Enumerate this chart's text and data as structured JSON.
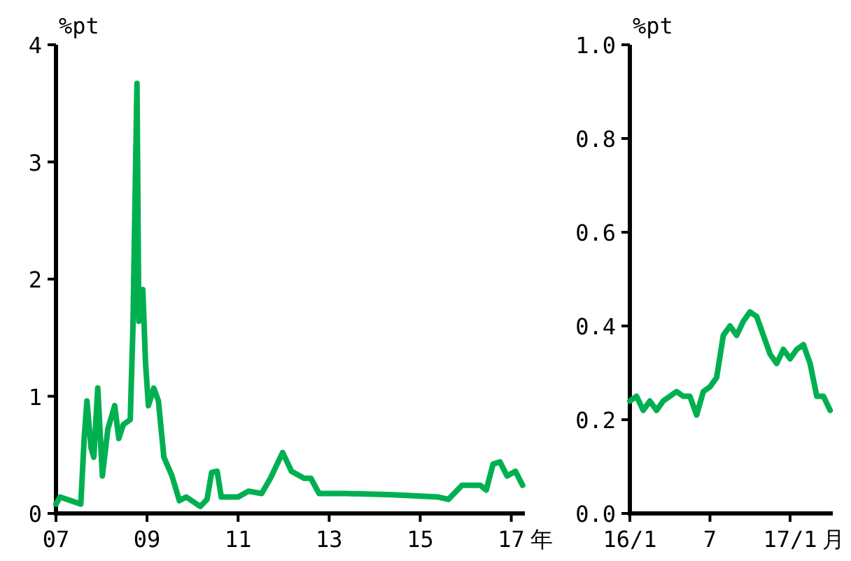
{
  "chart_data": [
    {
      "type": "line",
      "ylabel": "%pt",
      "xlabel": "年",
      "color": "#00b050",
      "x": [
        "2007-01-01",
        "2007-02-03",
        "2007-07-19",
        "2007-08-15",
        "2007-09-06",
        "2007-10-09",
        "2007-10-31",
        "2007-12-02",
        "2008-01-08",
        "2008-02-21",
        "2008-03-25",
        "2008-04-16",
        "2008-05-19",
        "2008-06-25",
        "2008-08-19",
        "2008-09-10",
        "2008-10-12",
        "2008-10-27",
        "2008-11-28",
        "2008-12-20",
        "2009-01-12",
        "2009-02-24",
        "2009-04-02",
        "2009-05-16",
        "2009-07-20",
        "2009-09-17",
        "2009-11-11",
        "2010-03-04",
        "2010-04-27",
        "2010-06-03",
        "2010-07-17",
        "2010-08-19",
        "2011-01-01",
        "2011-03-24",
        "2011-07-09",
        "2011-09-17",
        "2011-12-24",
        "2012-03-04",
        "2012-06-14",
        "2012-08-07",
        "2012-10-12",
        "2013-05-16",
        "2014-05-19",
        "2015-05-27",
        "2015-08-15",
        "2015-12-02",
        "2016-04-27",
        "2016-06-14",
        "2016-08-07",
        "2016-10-02",
        "2016-11-28",
        "2017-02-03",
        "2017-04-02"
      ],
      "values": [
        0.08,
        0.14,
        0.08,
        0.64,
        0.96,
        0.56,
        0.48,
        1.07,
        0.32,
        0.72,
        0.84,
        0.92,
        0.64,
        0.76,
        0.8,
        1.6,
        3.67,
        1.64,
        1.91,
        1.28,
        0.92,
        1.07,
        0.96,
        0.48,
        0.32,
        0.11,
        0.14,
        0.06,
        0.12,
        0.35,
        0.36,
        0.14,
        0.14,
        0.19,
        0.17,
        0.3,
        0.52,
        0.36,
        0.3,
        0.3,
        0.17,
        0.17,
        0.16,
        0.14,
        0.12,
        0.24,
        0.24,
        0.2,
        0.42,
        0.44,
        0.32,
        0.36,
        0.24
      ],
      "xlim": [
        "2007-01-01",
        "2017-04-20"
      ],
      "ylim": [
        0,
        4
      ],
      "xticks": [
        {
          "value": "2007-01-01",
          "label": "07"
        },
        {
          "value": "2009-01-01",
          "label": "09"
        },
        {
          "value": "2011-01-01",
          "label": "11"
        },
        {
          "value": "2013-01-01",
          "label": "13"
        },
        {
          "value": "2015-01-01",
          "label": "15"
        },
        {
          "value": "2017-01-01",
          "label": "17"
        }
      ],
      "yticks": [
        0,
        1,
        2,
        3,
        4
      ]
    },
    {
      "type": "line",
      "ylabel": "%pt",
      "xlabel": "月",
      "color": "#00b050",
      "categories": [
        "16/1",
        null,
        null,
        null,
        null,
        null,
        null,
        null,
        null,
        null,
        null,
        null,
        "7",
        null,
        null,
        null,
        null,
        null,
        null,
        null,
        null,
        null,
        null,
        null,
        "17/1",
        null,
        null,
        null,
        null,
        null,
        null
      ],
      "values": [
        0.24,
        0.25,
        0.22,
        0.24,
        0.22,
        0.24,
        0.25,
        0.26,
        0.25,
        0.25,
        0.21,
        0.26,
        0.27,
        0.29,
        0.38,
        0.4,
        0.38,
        0.41,
        0.43,
        0.42,
        0.38,
        0.34,
        0.32,
        0.35,
        0.33,
        0.35,
        0.36,
        0.32,
        0.25,
        0.25,
        0.22
      ],
      "ylim": [
        0,
        1
      ],
      "yticks": [
        {
          "value": 0,
          "label": "0.0"
        },
        {
          "value": 0.2,
          "label": "0.2"
        },
        {
          "value": 0.4,
          "label": "0.4"
        },
        {
          "value": 0.6,
          "label": "0.6"
        },
        {
          "value": 0.8,
          "label": "0.8"
        },
        {
          "value": 1,
          "label": "1.0"
        }
      ]
    }
  ]
}
